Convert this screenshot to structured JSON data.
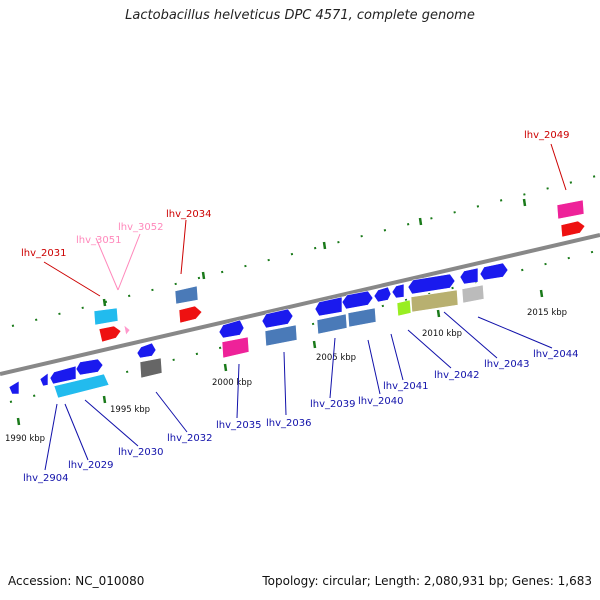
{
  "header": {
    "title": "Lactobacillus helveticus DPC 4571, complete genome"
  },
  "footer": {
    "accession": "Accession: NC_010080",
    "topology": "Topology: circular; Length: 2,080,931 bp; Genes: 1,683"
  },
  "colors": {
    "backbone": "#888888",
    "tick": "#1a7a1a",
    "label_blue": "#1111aa",
    "label_red": "#cc0000",
    "label_pink": "#ff88bb",
    "cds_blue": "#1a1aee",
    "cds_cyan": "#22bbee",
    "cds_steel": "#4a7ab8",
    "cds_magenta": "#ee2299",
    "cds_red": "#ee1111",
    "cds_gray": "#666666",
    "cds_lightgray": "#bbbbbb",
    "cds_khaki": "#b8b070",
    "cds_lime": "#99ee22",
    "cds_pink": "#ff99cc"
  },
  "scale": {
    "ticks": [
      {
        "label": "1990 kbp"
      },
      {
        "label": "1995 kbp"
      },
      {
        "label": "2000 kbp"
      },
      {
        "label": "2005 kbp"
      },
      {
        "label": "2010 kbp"
      },
      {
        "label": "2015 kbp"
      }
    ]
  },
  "gene_labels": [
    {
      "label": "lhv_2904",
      "color": "blue"
    },
    {
      "label": "lhv_2029",
      "color": "blue"
    },
    {
      "label": "lhv_2030",
      "color": "blue"
    },
    {
      "label": "lhv_2031",
      "color": "red"
    },
    {
      "label": "lhv_3051",
      "color": "pink"
    },
    {
      "label": "lhv_3052",
      "color": "pink"
    },
    {
      "label": "lhv_2032",
      "color": "blue"
    },
    {
      "label": "lhv_2034",
      "color": "red"
    },
    {
      "label": "lhv_2035",
      "color": "blue"
    },
    {
      "label": "lhv_2036",
      "color": "blue"
    },
    {
      "label": "lhv_2039",
      "color": "blue"
    },
    {
      "label": "lhv_2040",
      "color": "blue"
    },
    {
      "label": "lhv_2041",
      "color": "blue"
    },
    {
      "label": "lhv_2042",
      "color": "blue"
    },
    {
      "label": "lhv_2043",
      "color": "blue"
    },
    {
      "label": "lhv_2044",
      "color": "blue"
    },
    {
      "label": "lhv_2049",
      "color": "red"
    }
  ]
}
